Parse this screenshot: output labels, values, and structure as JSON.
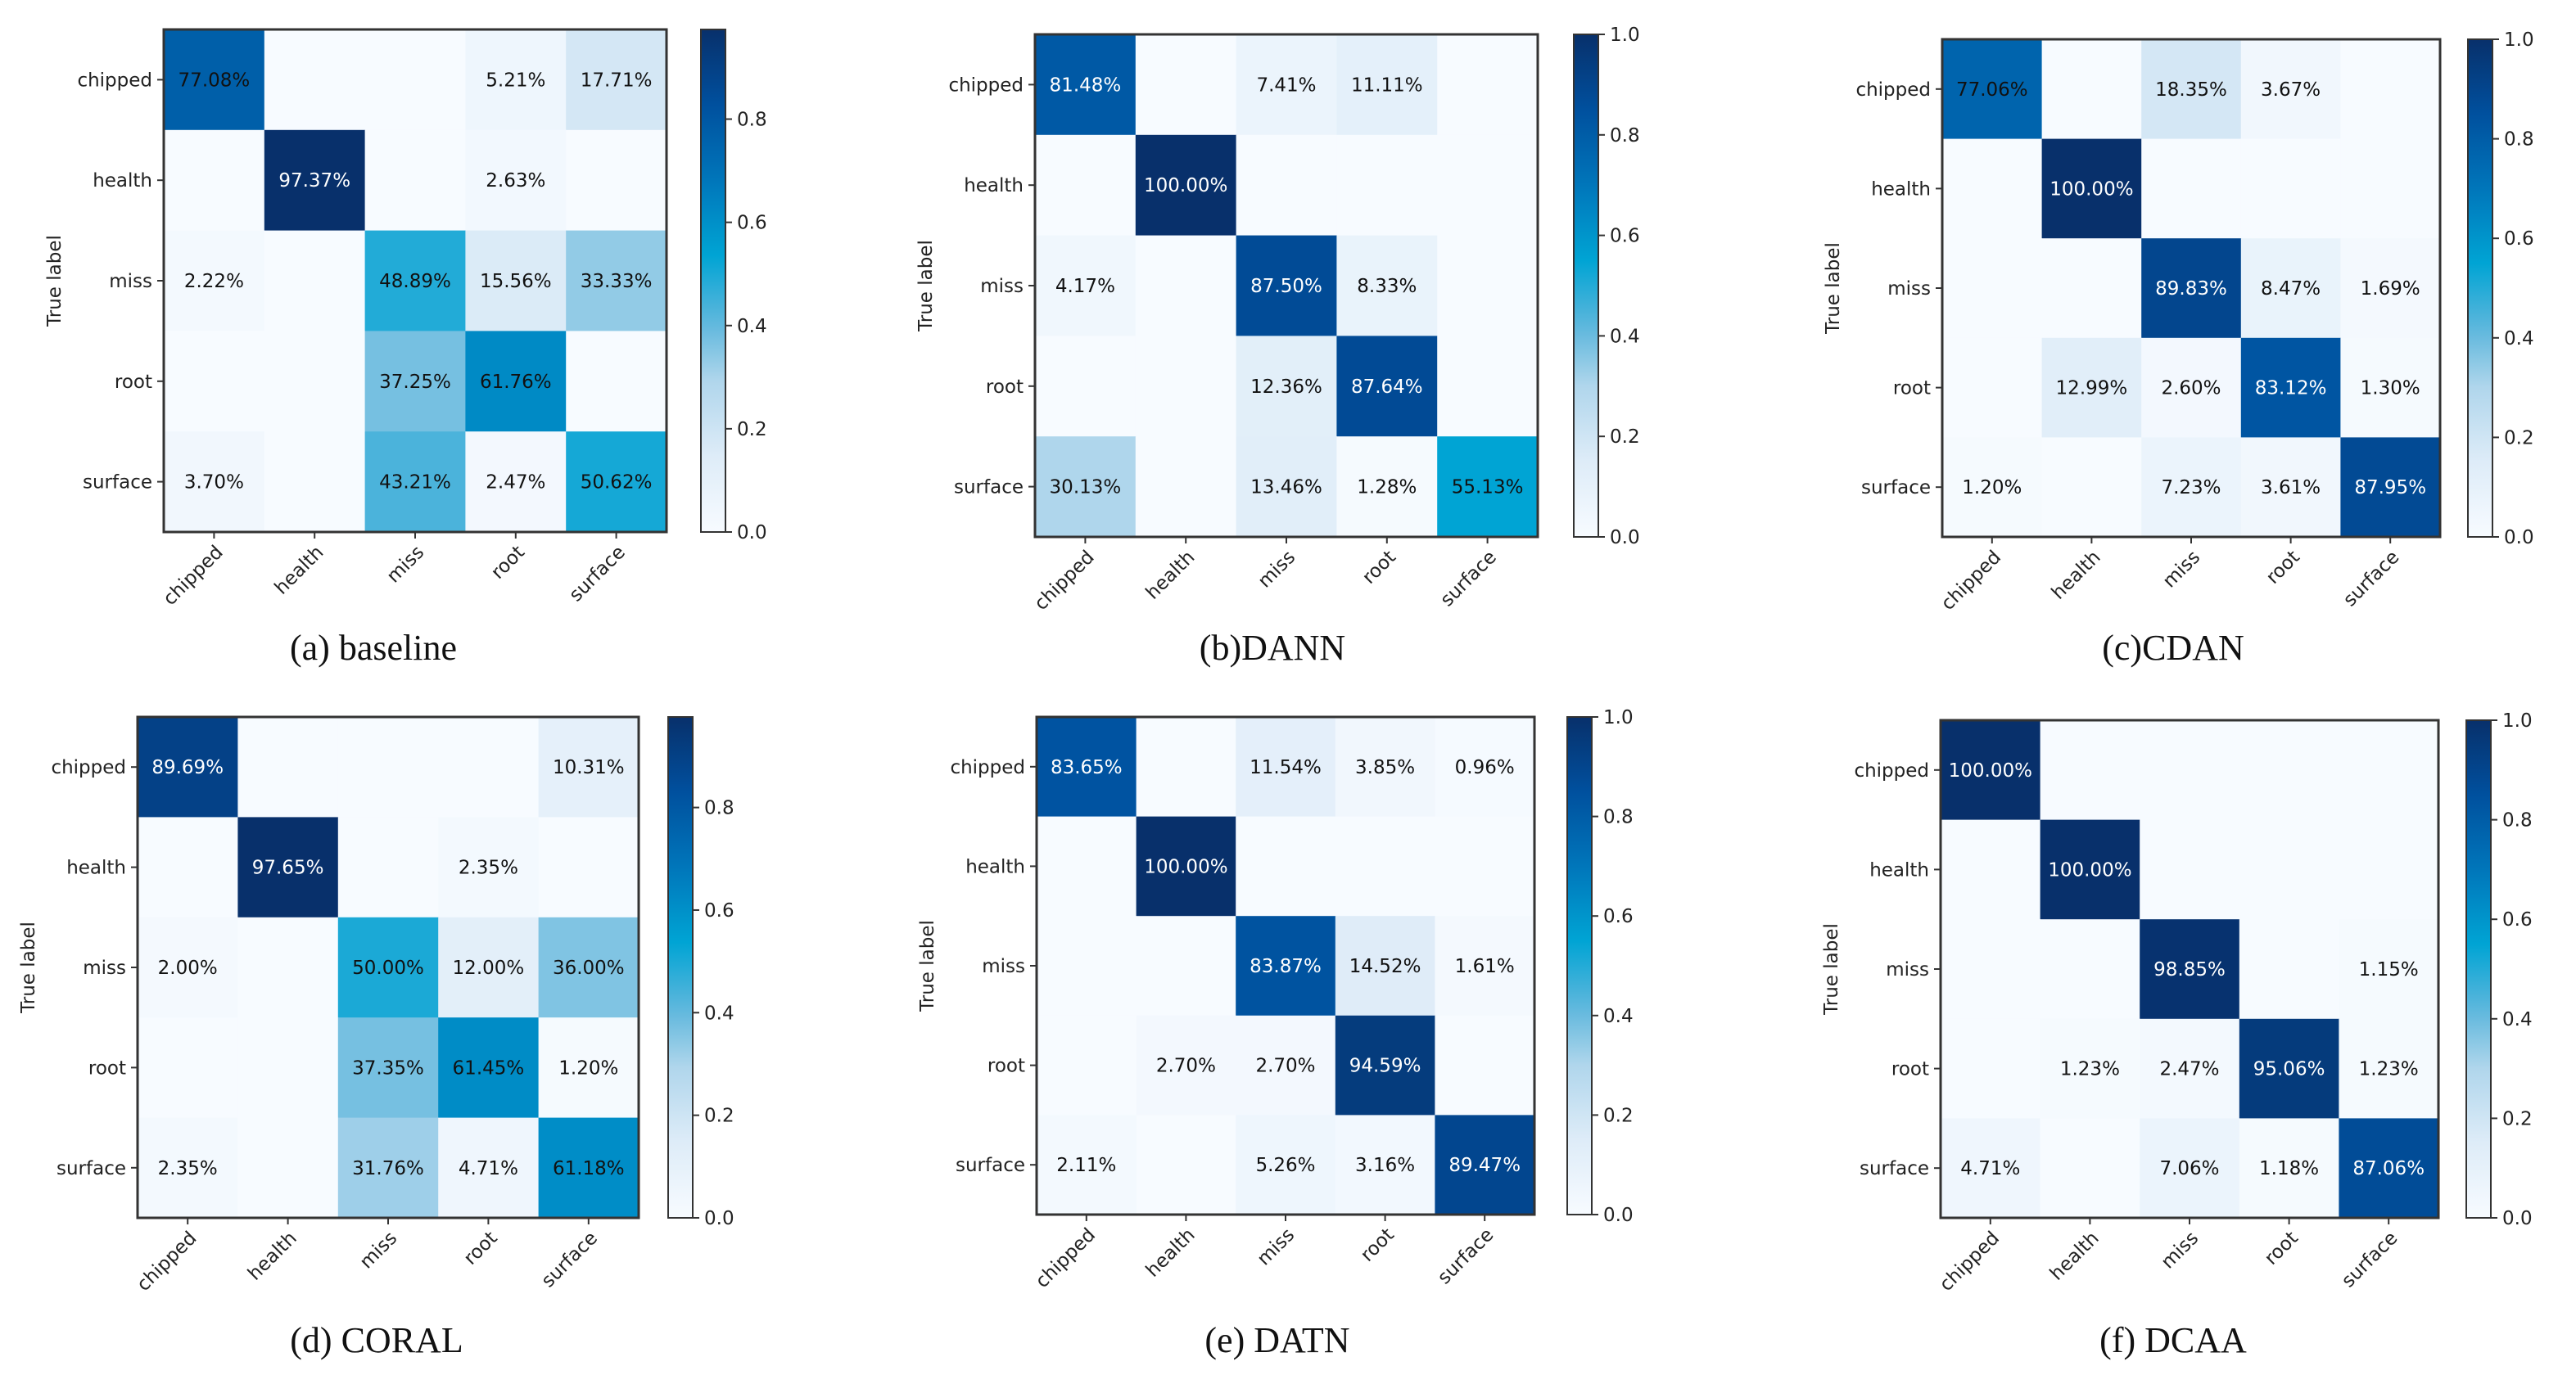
{
  "chart_data": [
    {
      "type": "heatmap",
      "caption": "(a) baseline",
      "ylabel": "True label",
      "categories": [
        "chipped",
        "health",
        "miss",
        "root",
        "surface"
      ],
      "values": [
        [
          77.08,
          0,
          0,
          5.21,
          17.71
        ],
        [
          0,
          97.37,
          0,
          2.63,
          0
        ],
        [
          2.22,
          0,
          48.89,
          15.56,
          33.33
        ],
        [
          0,
          0,
          37.25,
          61.76,
          0
        ],
        [
          3.7,
          0,
          43.21,
          2.47,
          50.62
        ]
      ],
      "colorbar": {
        "range": [
          0.0,
          0.9737
        ],
        "ticks": [
          "0.0",
          "0.2",
          "0.4",
          "0.6",
          "0.8"
        ]
      }
    },
    {
      "type": "heatmap",
      "caption": "(b)DANN",
      "ylabel": "True label",
      "categories": [
        "chipped",
        "health",
        "miss",
        "root",
        "surface"
      ],
      "values": [
        [
          81.48,
          0,
          7.41,
          11.11,
          0
        ],
        [
          0,
          100.0,
          0,
          0,
          0
        ],
        [
          4.17,
          0,
          87.5,
          8.33,
          0
        ],
        [
          0,
          0,
          12.36,
          87.64,
          0
        ],
        [
          30.13,
          0,
          13.46,
          1.28,
          55.13
        ]
      ],
      "colorbar": {
        "range": [
          0.0,
          1.0
        ],
        "ticks": [
          "0.0",
          "0.2",
          "0.4",
          "0.6",
          "0.8",
          "1.0"
        ]
      }
    },
    {
      "type": "heatmap",
      "caption": "(c)CDAN",
      "ylabel": "True label",
      "categories": [
        "chipped",
        "health",
        "miss",
        "root",
        "surface"
      ],
      "values": [
        [
          77.06,
          0,
          18.35,
          3.67,
          0
        ],
        [
          0,
          100.0,
          0,
          0,
          0
        ],
        [
          0,
          0,
          89.83,
          8.47,
          1.69
        ],
        [
          0,
          12.99,
          2.6,
          83.12,
          1.3
        ],
        [
          1.2,
          0,
          7.23,
          3.61,
          87.95
        ]
      ],
      "colorbar": {
        "range": [
          0.0,
          1.0
        ],
        "ticks": [
          "0.0",
          "0.2",
          "0.4",
          "0.6",
          "0.8",
          "1.0"
        ]
      }
    },
    {
      "type": "heatmap",
      "caption": "(d) CORAL",
      "ylabel": "True label",
      "categories": [
        "chipped",
        "health",
        "miss",
        "root",
        "surface"
      ],
      "values": [
        [
          89.69,
          0,
          0,
          0,
          10.31
        ],
        [
          0,
          97.65,
          0,
          2.35,
          0
        ],
        [
          2.0,
          0,
          50.0,
          12.0,
          36.0
        ],
        [
          0,
          0,
          37.35,
          61.45,
          1.2
        ],
        [
          2.35,
          0,
          31.76,
          4.71,
          61.18
        ]
      ],
      "colorbar": {
        "range": [
          0.0,
          0.9765
        ],
        "ticks": [
          "0.0",
          "0.2",
          "0.4",
          "0.6",
          "0.8"
        ]
      }
    },
    {
      "type": "heatmap",
      "caption": "(e) DATN",
      "ylabel": "True label",
      "categories": [
        "chipped",
        "health",
        "miss",
        "root",
        "surface"
      ],
      "values": [
        [
          83.65,
          0,
          11.54,
          3.85,
          0.96
        ],
        [
          0,
          100.0,
          0,
          0,
          0
        ],
        [
          0,
          0,
          83.87,
          14.52,
          1.61
        ],
        [
          0,
          2.7,
          2.7,
          94.59,
          0
        ],
        [
          2.11,
          0,
          5.26,
          3.16,
          89.47
        ]
      ],
      "colorbar": {
        "range": [
          0.0,
          1.0
        ],
        "ticks": [
          "0.0",
          "0.2",
          "0.4",
          "0.6",
          "0.8",
          "1.0"
        ]
      }
    },
    {
      "type": "heatmap",
      "caption": "(f) DCAA",
      "ylabel": "True label",
      "categories": [
        "chipped",
        "health",
        "miss",
        "root",
        "surface"
      ],
      "values": [
        [
          100.0,
          0,
          0,
          0,
          0
        ],
        [
          0,
          100.0,
          0,
          0,
          0
        ],
        [
          0,
          0,
          98.85,
          0,
          1.15
        ],
        [
          0,
          1.23,
          2.47,
          95.06,
          1.23
        ],
        [
          4.71,
          0,
          7.06,
          1.18,
          87.06
        ]
      ],
      "colorbar": {
        "range": [
          0.0,
          1.0
        ],
        "ticks": [
          "0.0",
          "0.2",
          "0.4",
          "0.6",
          "0.8",
          "1.0"
        ]
      }
    }
  ]
}
